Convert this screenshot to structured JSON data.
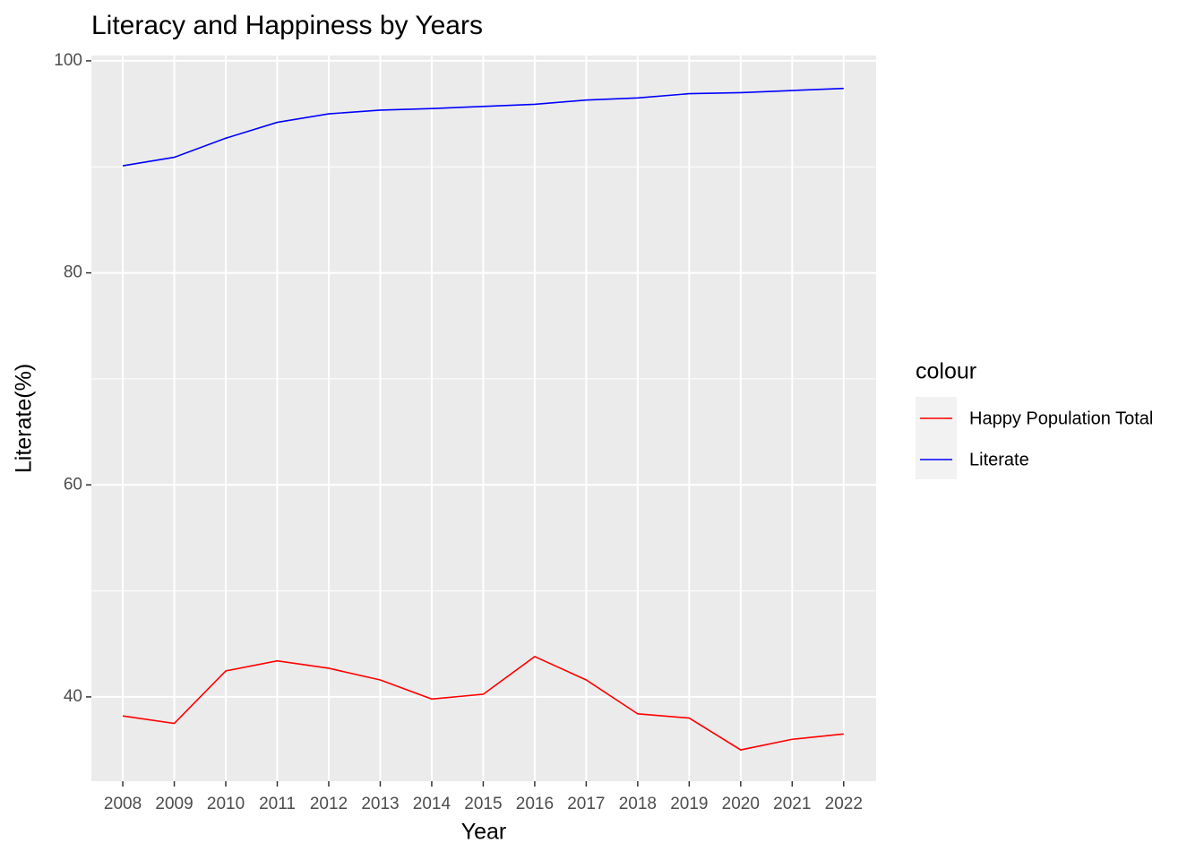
{
  "chart_data": {
    "type": "line",
    "title": "Literacy and Happiness by Years",
    "x_label": "Year",
    "y_label": "Literate(%)",
    "x": [
      2008,
      2009,
      2010,
      2011,
      2012,
      2013,
      2014,
      2015,
      2016,
      2017,
      2018,
      2019,
      2020,
      2021,
      2022
    ],
    "series": [
      {
        "name": "Happy Population Total",
        "color": "#ff0000",
        "values": [
          38.2,
          37.5,
          42.45,
          43.4,
          42.7,
          41.6,
          39.8,
          40.25,
          43.8,
          41.6,
          38.4,
          38.0,
          35.0,
          36.0,
          36.5
        ]
      },
      {
        "name": "Literate",
        "color": "#0000ff",
        "values": [
          90.1,
          90.9,
          92.7,
          94.2,
          95.0,
          95.35,
          95.5,
          95.7,
          95.9,
          96.3,
          96.5,
          96.9,
          97.0,
          97.2,
          97.4
        ]
      }
    ],
    "xlim": [
      2007.39,
      2022.63
    ],
    "xticks": [
      2008,
      2009,
      2010,
      2011,
      2012,
      2013,
      2014,
      2015,
      2016,
      2017,
      2018,
      2019,
      2020,
      2021,
      2022
    ],
    "ylim": [
      32.05,
      100.5
    ],
    "yticks": [
      40,
      60,
      80,
      100
    ],
    "minor_yticks": [
      50,
      70,
      90
    ],
    "grid": true,
    "legend_title": "colour",
    "legend_position": "right"
  }
}
